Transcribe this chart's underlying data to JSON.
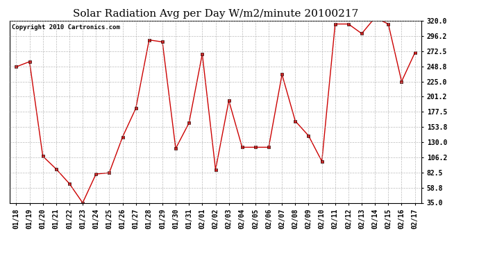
{
  "title": "Solar Radiation Avg per Day W/m2/minute 20100217",
  "copyright_text": "Copyright 2010 Cartronics.com",
  "labels": [
    "01/18",
    "01/19",
    "01/20",
    "01/21",
    "01/22",
    "01/23",
    "01/24",
    "01/25",
    "01/26",
    "01/27",
    "01/28",
    "01/29",
    "01/30",
    "01/31",
    "02/01",
    "02/02",
    "02/03",
    "02/04",
    "02/05",
    "02/06",
    "02/07",
    "02/08",
    "02/09",
    "02/10",
    "02/11",
    "02/12",
    "02/13",
    "02/14",
    "02/15",
    "02/16",
    "02/17"
  ],
  "values": [
    248.0,
    256.0,
    108.0,
    88.0,
    65.0,
    35.0,
    80.0,
    82.0,
    138.0,
    183.0,
    290.0,
    287.0,
    120.0,
    160.0,
    268.0,
    87.0,
    195.0,
    122.0,
    122.0,
    122.0,
    236.0,
    163.0,
    140.0,
    100.0,
    315.0,
    315.0,
    300.0,
    325.0,
    315.0,
    225.0,
    270.0
  ],
  "line_color": "#cc0000",
  "marker": "s",
  "marker_size": 2.5,
  "bg_color": "#ffffff",
  "grid_color": "#aaaaaa",
  "ylim": [
    35.0,
    320.0
  ],
  "yticks": [
    35.0,
    58.8,
    82.5,
    106.2,
    130.0,
    153.8,
    177.5,
    201.2,
    225.0,
    248.8,
    272.5,
    296.2,
    320.0
  ],
  "title_fontsize": 11,
  "tick_fontsize": 7,
  "copyright_fontsize": 6.5
}
